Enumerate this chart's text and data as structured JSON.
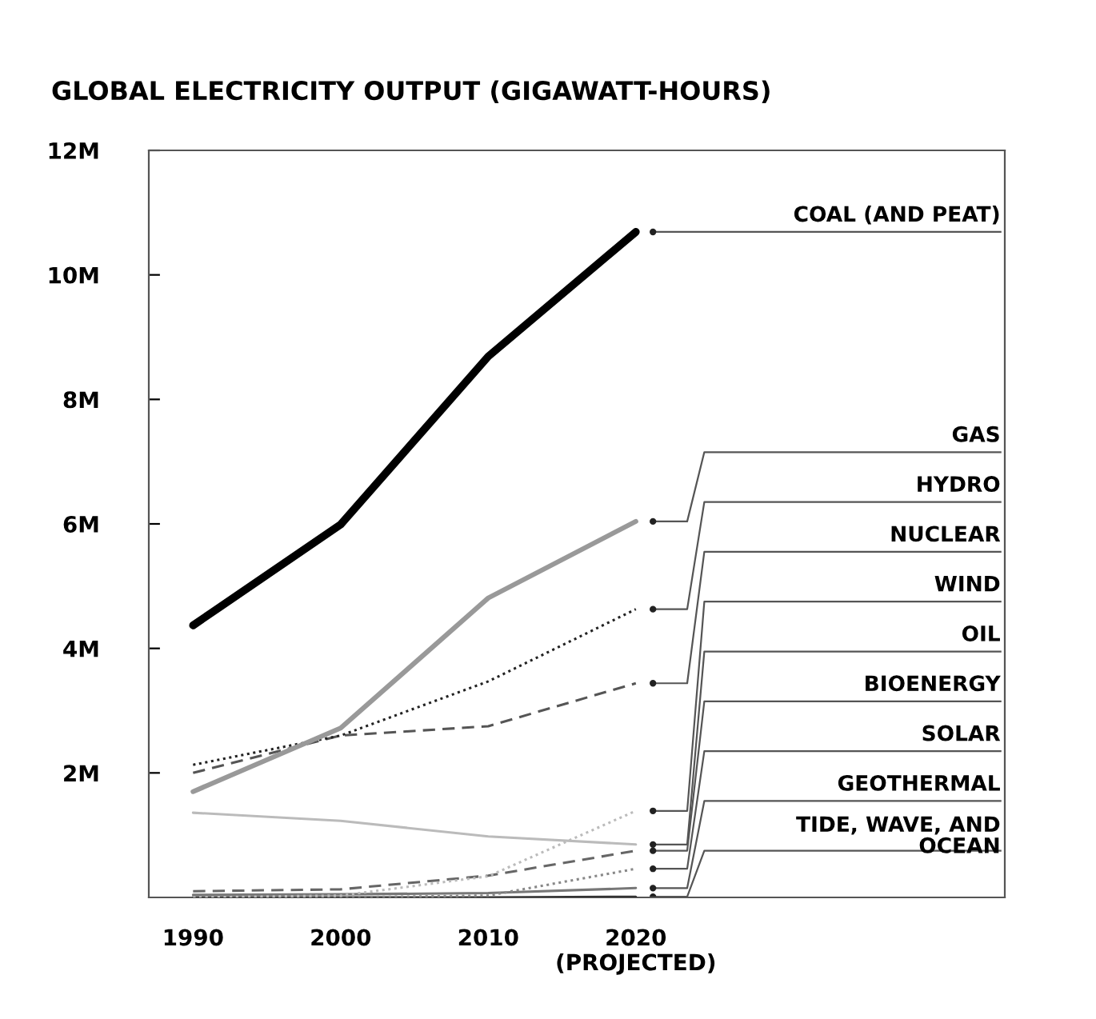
{
  "chart_data": {
    "type": "line",
    "title": "GLOBAL ELECTRICITY OUTPUT (GIGAWATT-HOURS)",
    "x": [
      1990,
      2000,
      2010,
      2020
    ],
    "xlim": [
      1987,
      2045
    ],
    "xticks": [
      1990,
      2000,
      2010,
      {
        "value": 2020,
        "label": "2020\n(PROJECTED)"
      }
    ],
    "ylim": [
      0,
      12000000
    ],
    "yticks": [
      {
        "value": 2000000,
        "label": "2M"
      },
      {
        "value": 4000000,
        "label": "4M"
      },
      {
        "value": 6000000,
        "label": "6M"
      },
      {
        "value": 8000000,
        "label": "8M"
      },
      {
        "value": 10000000,
        "label": "10M"
      },
      {
        "value": 12000000,
        "label": "12M"
      }
    ],
    "grid": false,
    "legend": false,
    "marker": "none",
    "series": [
      {
        "name": "COAL (AND PEAT)",
        "color": "#000000",
        "line_style": "solid",
        "values": [
          4370000,
          5990000,
          8690000,
          10690000
        ]
      },
      {
        "name": "GAS",
        "color": "#999999",
        "line_style": "solid",
        "values": [
          1700000,
          2720000,
          4810000,
          6040000
        ]
      },
      {
        "name": "HYDRO",
        "color": "#222222",
        "line_style": "dotted",
        "values": [
          2130000,
          2600000,
          3470000,
          4630000
        ]
      },
      {
        "name": "NUCLEAR",
        "color": "#555555",
        "line_style": "dashed",
        "values": [
          2000000,
          2600000,
          2750000,
          3440000
        ]
      },
      {
        "name": "WIND",
        "color": "#bbbbbb",
        "line_style": "dotted",
        "values": [
          0,
          30000,
          340000,
          1390000
        ]
      },
      {
        "name": "OIL",
        "color": "#bbbbbb",
        "line_style": "solid",
        "values": [
          1360000,
          1230000,
          980000,
          850000
        ]
      },
      {
        "name": "BIOENERGY",
        "color": "#666666",
        "line_style": "dashed",
        "values": [
          100000,
          130000,
          350000,
          750000
        ]
      },
      {
        "name": "SOLAR",
        "color": "#888888",
        "line_style": "dotted",
        "values": [
          0,
          0,
          30000,
          460000
        ]
      },
      {
        "name": "GEOTHERMAL",
        "color": "#777777",
        "line_style": "solid",
        "values": [
          40000,
          50000,
          70000,
          150000
        ]
      },
      {
        "name": "TIDE, WAVE, AND\nOCEAN",
        "color": "#333333",
        "line_style": "solid",
        "values": [
          0,
          0,
          0,
          10000
        ]
      }
    ]
  }
}
